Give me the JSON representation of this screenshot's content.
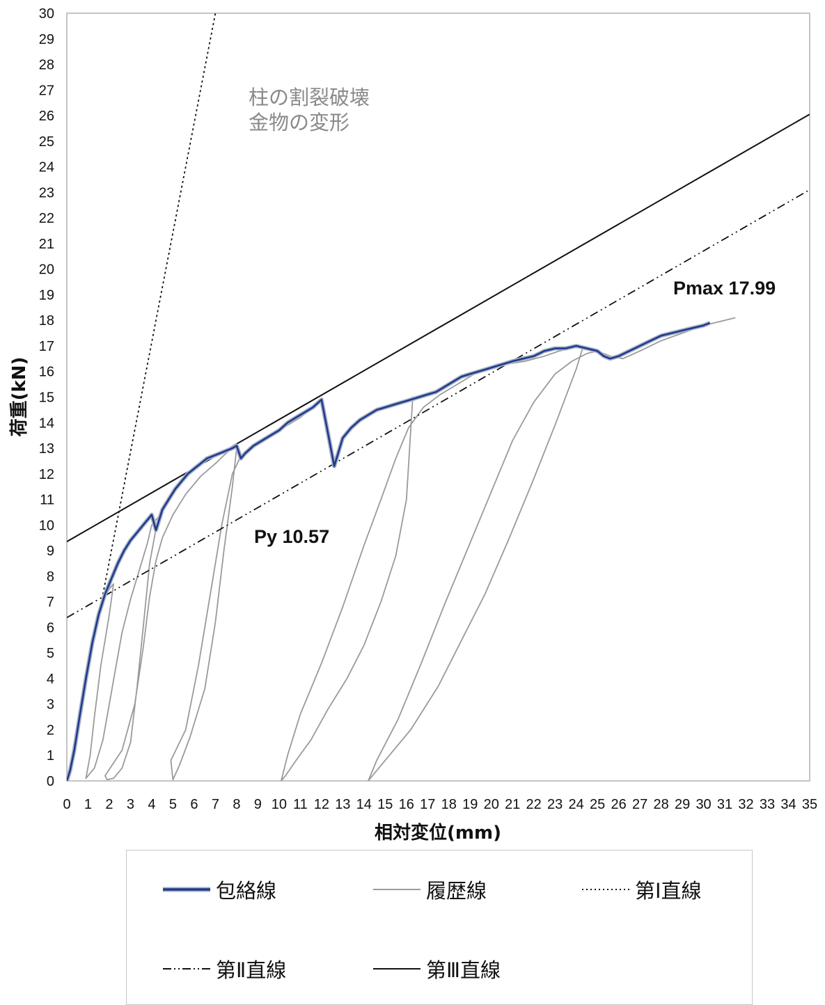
{
  "chart_data": {
    "type": "line",
    "xlabel": "相対変位(mm)",
    "ylabel": "荷重(kN)",
    "xlim": [
      0,
      35
    ],
    "ylim": [
      0,
      30
    ],
    "x_ticks": [
      "0",
      "1",
      "2",
      "3",
      "4",
      "5",
      "6",
      "7",
      "8",
      "9",
      "10",
      "11",
      "12",
      "13",
      "14",
      "15",
      "16",
      "17",
      "18",
      "19",
      "20",
      "21",
      "22",
      "23",
      "24",
      "25",
      "26",
      "27",
      "28",
      "29",
      "30",
      "31",
      "32",
      "33",
      "34",
      "35"
    ],
    "y_ticks": [
      "0",
      "1",
      "2",
      "3",
      "4",
      "5",
      "6",
      "7",
      "8",
      "9",
      "10",
      "11",
      "12",
      "13",
      "14",
      "15",
      "16",
      "17",
      "18",
      "19",
      "20",
      "21",
      "22",
      "23",
      "24",
      "25",
      "26",
      "27",
      "28",
      "29",
      "30"
    ],
    "grid": false,
    "legend_placement": "bottom",
    "annotations": [
      {
        "text": "柱の割裂破壊",
        "style": "gray"
      },
      {
        "text": "金物の変形",
        "style": "gray"
      },
      {
        "text": "Pmax 17.99",
        "style": "black"
      },
      {
        "text": "Py 10.57",
        "style": "black"
      }
    ],
    "series": [
      {
        "name": "履歴線",
        "style": "hysteresis",
        "color": "#9a9a9a",
        "x": [
          0,
          0.15,
          0.35,
          0.6,
          0.9,
          1.2,
          1.5,
          1.8,
          2.0,
          2.2,
          2.0,
          1.6,
          1.3,
          1.1,
          0.9,
          1.3,
          1.7,
          2.0,
          2.3,
          2.6,
          3.0,
          3.4,
          3.8,
          4.0,
          4.3,
          3.9,
          3.6,
          3.3,
          3.0,
          2.6,
          2.2,
          1.9,
          1.8,
          2.6,
          3.2,
          3.6,
          3.9,
          4.2,
          4.5,
          5.0,
          5.6,
          6.3,
          7.0,
          7.5,
          7.8,
          8.0,
          7.8,
          7.4,
          7.0,
          6.5,
          5.8,
          5.3,
          5.0,
          4.9,
          5.6,
          6.2,
          6.8,
          7.3,
          7.8,
          8.2,
          9,
          10,
          11,
          11.6,
          12,
          12.3,
          12.6,
          13,
          13.4,
          13.8,
          14.2,
          14.6,
          15,
          15.4,
          15.8,
          16.1,
          16.3,
          16.0,
          15.5,
          14.8,
          14.0,
          13.2,
          12.3,
          11.5,
          10.8,
          10.3,
          10.1,
          10.4,
          11,
          12,
          13,
          14,
          14.8,
          15.5,
          16.1,
          16.8,
          17.6,
          18.4,
          19.2,
          20,
          20.8,
          21.6,
          22.5,
          23.2,
          23.8,
          24.2,
          24.3,
          24.0,
          23.0,
          21.9,
          20.8,
          19.7,
          18.6,
          17.5,
          16.2,
          15.3,
          14.7,
          14.3,
          14.2,
          14.6,
          15.6,
          16.7,
          17.8,
          19.0,
          20.2,
          21.0,
          22.0,
          23.0,
          23.8,
          24.5,
          25.0,
          25.6,
          26.2,
          27,
          28,
          29,
          30,
          31,
          31.5
        ],
        "y": [
          0,
          0.4,
          1.2,
          2.5,
          4.0,
          5.4,
          6.5,
          7.2,
          7.5,
          7.7,
          6.5,
          4.5,
          2.5,
          1.0,
          0.1,
          0.5,
          1.6,
          3.0,
          4.4,
          5.8,
          7.1,
          8.2,
          9.3,
          10.0,
          10.3,
          8.5,
          6.0,
          3.6,
          1.5,
          0.5,
          0.1,
          0.05,
          0.2,
          1.2,
          3.0,
          5.2,
          7.2,
          8.6,
          9.5,
          10.4,
          11.2,
          11.9,
          12.4,
          12.8,
          13.0,
          13.0,
          11.5,
          9.0,
          6.2,
          3.6,
          1.7,
          0.6,
          0.05,
          0.8,
          2.0,
          4.5,
          7.5,
          10.0,
          12.0,
          12.7,
          13.2,
          13.7,
          14.2,
          14.6,
          14.9,
          13.6,
          12.3,
          13.4,
          13.8,
          14.1,
          14.3,
          14.5,
          14.6,
          14.7,
          14.8,
          14.9,
          15.0,
          11.0,
          8.8,
          7.0,
          5.3,
          4.0,
          2.8,
          1.6,
          0.8,
          0.2,
          0.0,
          1.0,
          2.6,
          4.6,
          6.8,
          9.2,
          11.0,
          12.6,
          13.8,
          14.6,
          15.1,
          15.5,
          15.9,
          16.1,
          16.3,
          16.4,
          16.6,
          16.8,
          16.9,
          17.0,
          16.9,
          16.1,
          13.9,
          11.6,
          9.4,
          7.3,
          5.5,
          3.7,
          2.0,
          1.1,
          0.5,
          0.1,
          0.0,
          0.8,
          2.4,
          4.6,
          6.9,
          9.3,
          11.7,
          13.3,
          14.8,
          15.9,
          16.4,
          16.7,
          16.8,
          16.6,
          16.5,
          16.8,
          17.2,
          17.5,
          17.8,
          18.0,
          18.1
        ]
      },
      {
        "name": "包絡線",
        "style": "envelope",
        "color": "#1f3a8a",
        "x": [
          0,
          0.15,
          0.35,
          0.6,
          0.9,
          1.2,
          1.5,
          1.8,
          2.1,
          2.4,
          2.7,
          3.0,
          3.3,
          3.6,
          3.9,
          4.0,
          4.2,
          4.5,
          4.8,
          5.1,
          5.4,
          5.7,
          6.0,
          6.3,
          6.6,
          6.9,
          7.2,
          7.5,
          7.8,
          8.0,
          8.2,
          8.4,
          8.8,
          9.2,
          9.6,
          10.0,
          10.4,
          10.8,
          11.2,
          11.6,
          12.0,
          12.3,
          12.6,
          13.0,
          13.4,
          13.8,
          14.2,
          14.6,
          15.0,
          15.4,
          15.8,
          16.2,
          16.6,
          17.0,
          17.4,
          17.8,
          18.2,
          18.6,
          19.0,
          19.4,
          19.8,
          20.2,
          20.6,
          21.0,
          21.5,
          22.0,
          22.5,
          23.0,
          23.5,
          24.0,
          24.5,
          25.0,
          25.3,
          25.6,
          26.0,
          26.5,
          27.0,
          27.5,
          28.0,
          28.5,
          29.0,
          29.5,
          30.0,
          30.3
        ],
        "y": [
          0,
          0.4,
          1.2,
          2.5,
          4.0,
          5.4,
          6.5,
          7.3,
          7.9,
          8.5,
          9.0,
          9.4,
          9.7,
          10.0,
          10.3,
          10.4,
          9.8,
          10.6,
          11.0,
          11.4,
          11.7,
          12.0,
          12.2,
          12.4,
          12.6,
          12.7,
          12.8,
          12.9,
          13.0,
          13.1,
          12.6,
          12.8,
          13.1,
          13.3,
          13.5,
          13.7,
          14.0,
          14.2,
          14.4,
          14.6,
          14.9,
          13.6,
          12.3,
          13.4,
          13.8,
          14.1,
          14.3,
          14.5,
          14.6,
          14.7,
          14.8,
          14.9,
          15.0,
          15.1,
          15.2,
          15.4,
          15.6,
          15.8,
          15.9,
          16.0,
          16.1,
          16.2,
          16.3,
          16.4,
          16.5,
          16.6,
          16.8,
          16.9,
          16.9,
          17.0,
          16.9,
          16.8,
          16.6,
          16.5,
          16.6,
          16.8,
          17.0,
          17.2,
          17.4,
          17.5,
          17.6,
          17.7,
          17.8,
          17.9
        ]
      },
      {
        "name": "第Ⅰ直線",
        "style": "dotted",
        "color": "#111111",
        "x": [
          0,
          7
        ],
        "y": [
          0,
          30
        ]
      },
      {
        "name": "第Ⅱ直線",
        "style": "dash-dot-dot",
        "color": "#111111",
        "x": [
          0,
          35
        ],
        "y": [
          6.38,
          23.1
        ]
      },
      {
        "name": "第Ⅲ直線",
        "style": "solid",
        "color": "#111111",
        "x": [
          0,
          35
        ],
        "y": [
          9.35,
          26.05
        ]
      }
    ]
  },
  "legend": {
    "items": [
      {
        "label": "包絡線",
        "style": "envelope"
      },
      {
        "label": "履歴線",
        "style": "hysteresis"
      },
      {
        "label": "第Ⅰ直線",
        "style": "dotted"
      },
      {
        "label": "第Ⅱ直線",
        "style": "dash-dot-dot"
      },
      {
        "label": "第Ⅲ直線",
        "style": "solid"
      }
    ]
  },
  "colors": {
    "envelope_outer": "#a9b2c8",
    "envelope_inner": "#1f3a8a",
    "hysteresis": "#9a9a9a",
    "annotation_gray": "#8a8a8a",
    "frame": "#b0b0b0"
  }
}
